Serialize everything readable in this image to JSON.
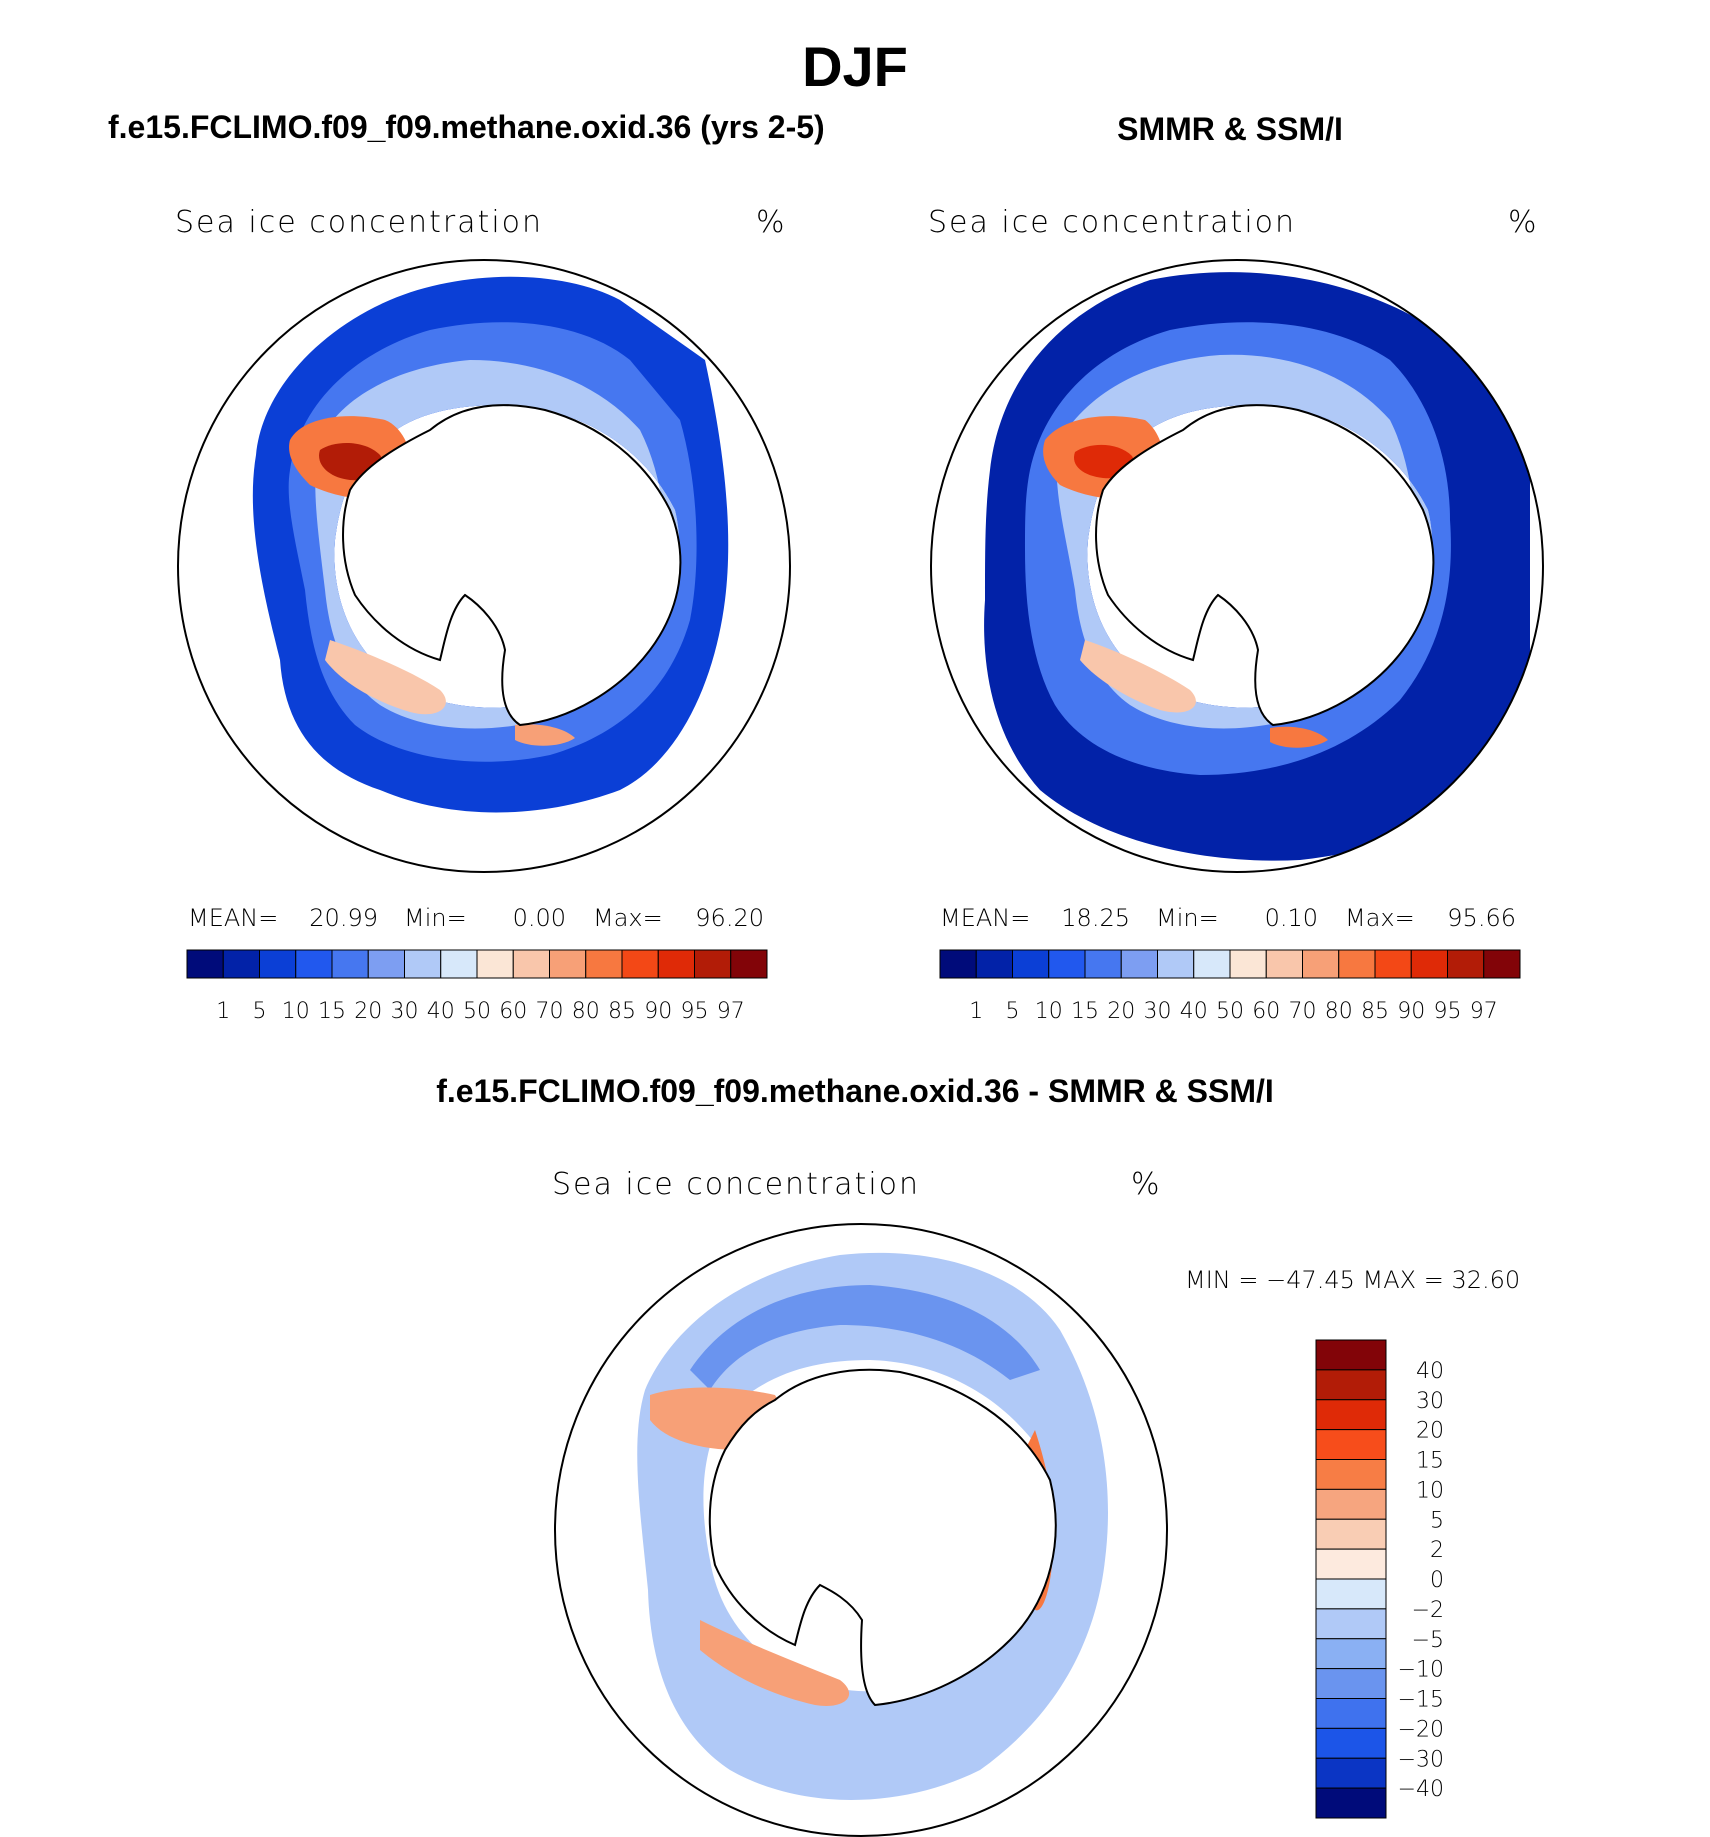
{
  "main_title": "DJF",
  "panels": [
    {
      "id": "model",
      "header": "f.e15.FCLIMO.f09_f09.methane.oxid.36 (yrs 2-5)",
      "subtitle": "Sea ice concentration",
      "units": "%",
      "stats": {
        "mean_label": "MEAN=",
        "mean": "20.99",
        "min_label": "Min=",
        "min": "0.00",
        "max_label": "Max=",
        "max": "96.20"
      }
    },
    {
      "id": "obs",
      "header": "SMMR & SSM/I",
      "subtitle": "Sea ice concentration",
      "units": "%",
      "stats": {
        "mean_label": "MEAN=",
        "mean": "18.25",
        "min_label": "Min=",
        "min": "0.10",
        "max_label": "Max=",
        "max": "95.66"
      }
    }
  ],
  "abs_colorbar": {
    "colors": [
      "#000b7a",
      "#0222a8",
      "#0b3fd6",
      "#2158ee",
      "#4677f0",
      "#7d9ef2",
      "#b0c9f7",
      "#d7e8fa",
      "#fbe6d6",
      "#f9c6ab",
      "#f7a077",
      "#f77840",
      "#f34816",
      "#df2a07",
      "#b21c07",
      "#820408"
    ],
    "labels": [
      "1",
      "5",
      "10",
      "15",
      "20",
      "30",
      "40",
      "50",
      "60",
      "70",
      "80",
      "85",
      "90",
      "95",
      "97"
    ]
  },
  "diff_panel": {
    "header": "f.e15.FCLIMO.f09_f09.methane.oxid.36 - SMMR & SSM/I",
    "subtitle": "Sea ice concentration",
    "units": "%",
    "stats_text": "MIN = −47.45 MAX =   32.60"
  },
  "diff_colorbar": {
    "colors": [
      "#820408",
      "#b21c07",
      "#df2a07",
      "#f74d1b",
      "#f77d45",
      "#f6a57f",
      "#f9cdb4",
      "#fdeade",
      "#d7e8fa",
      "#b0c9f7",
      "#8ab0f3",
      "#6a94ef",
      "#3f72ee",
      "#1c55e8",
      "#0b35c4",
      "#000b7a"
    ],
    "labels": [
      "40",
      "30",
      "20",
      "15",
      "10",
      "5",
      "2",
      "0",
      "−2",
      "−5",
      "−10",
      "−15",
      "−20",
      "−30",
      "−40"
    ]
  }
}
